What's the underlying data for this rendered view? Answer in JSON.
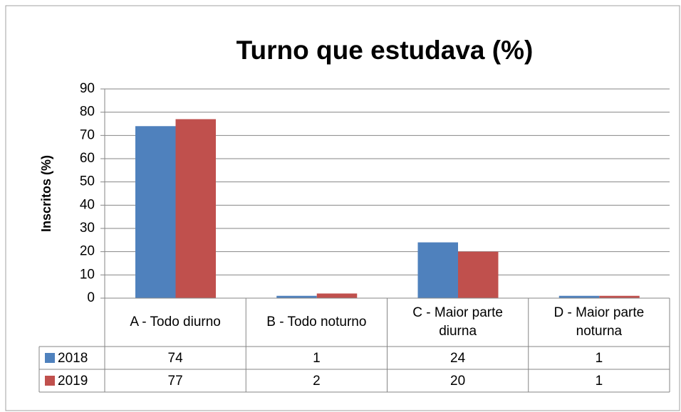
{
  "chart_data": {
    "type": "bar",
    "title": "Turno que estudava (%)",
    "y_label": "Inscritos (%)",
    "categories": [
      "A - Todo diurno",
      "B - Todo noturno",
      "C - Maior parte diurna",
      "D - Maior parte noturna"
    ],
    "series": [
      {
        "name": "2018",
        "color": "#4f81bd",
        "values": [
          74,
          1,
          24,
          1
        ]
      },
      {
        "name": "2019",
        "color": "#c0504d",
        "values": [
          77,
          2,
          20,
          1
        ]
      }
    ],
    "ylim": [
      0,
      90
    ],
    "yticks": [
      0,
      10,
      20,
      30,
      40,
      50,
      60,
      70,
      80,
      90
    ],
    "grid": true,
    "data_table": true
  }
}
